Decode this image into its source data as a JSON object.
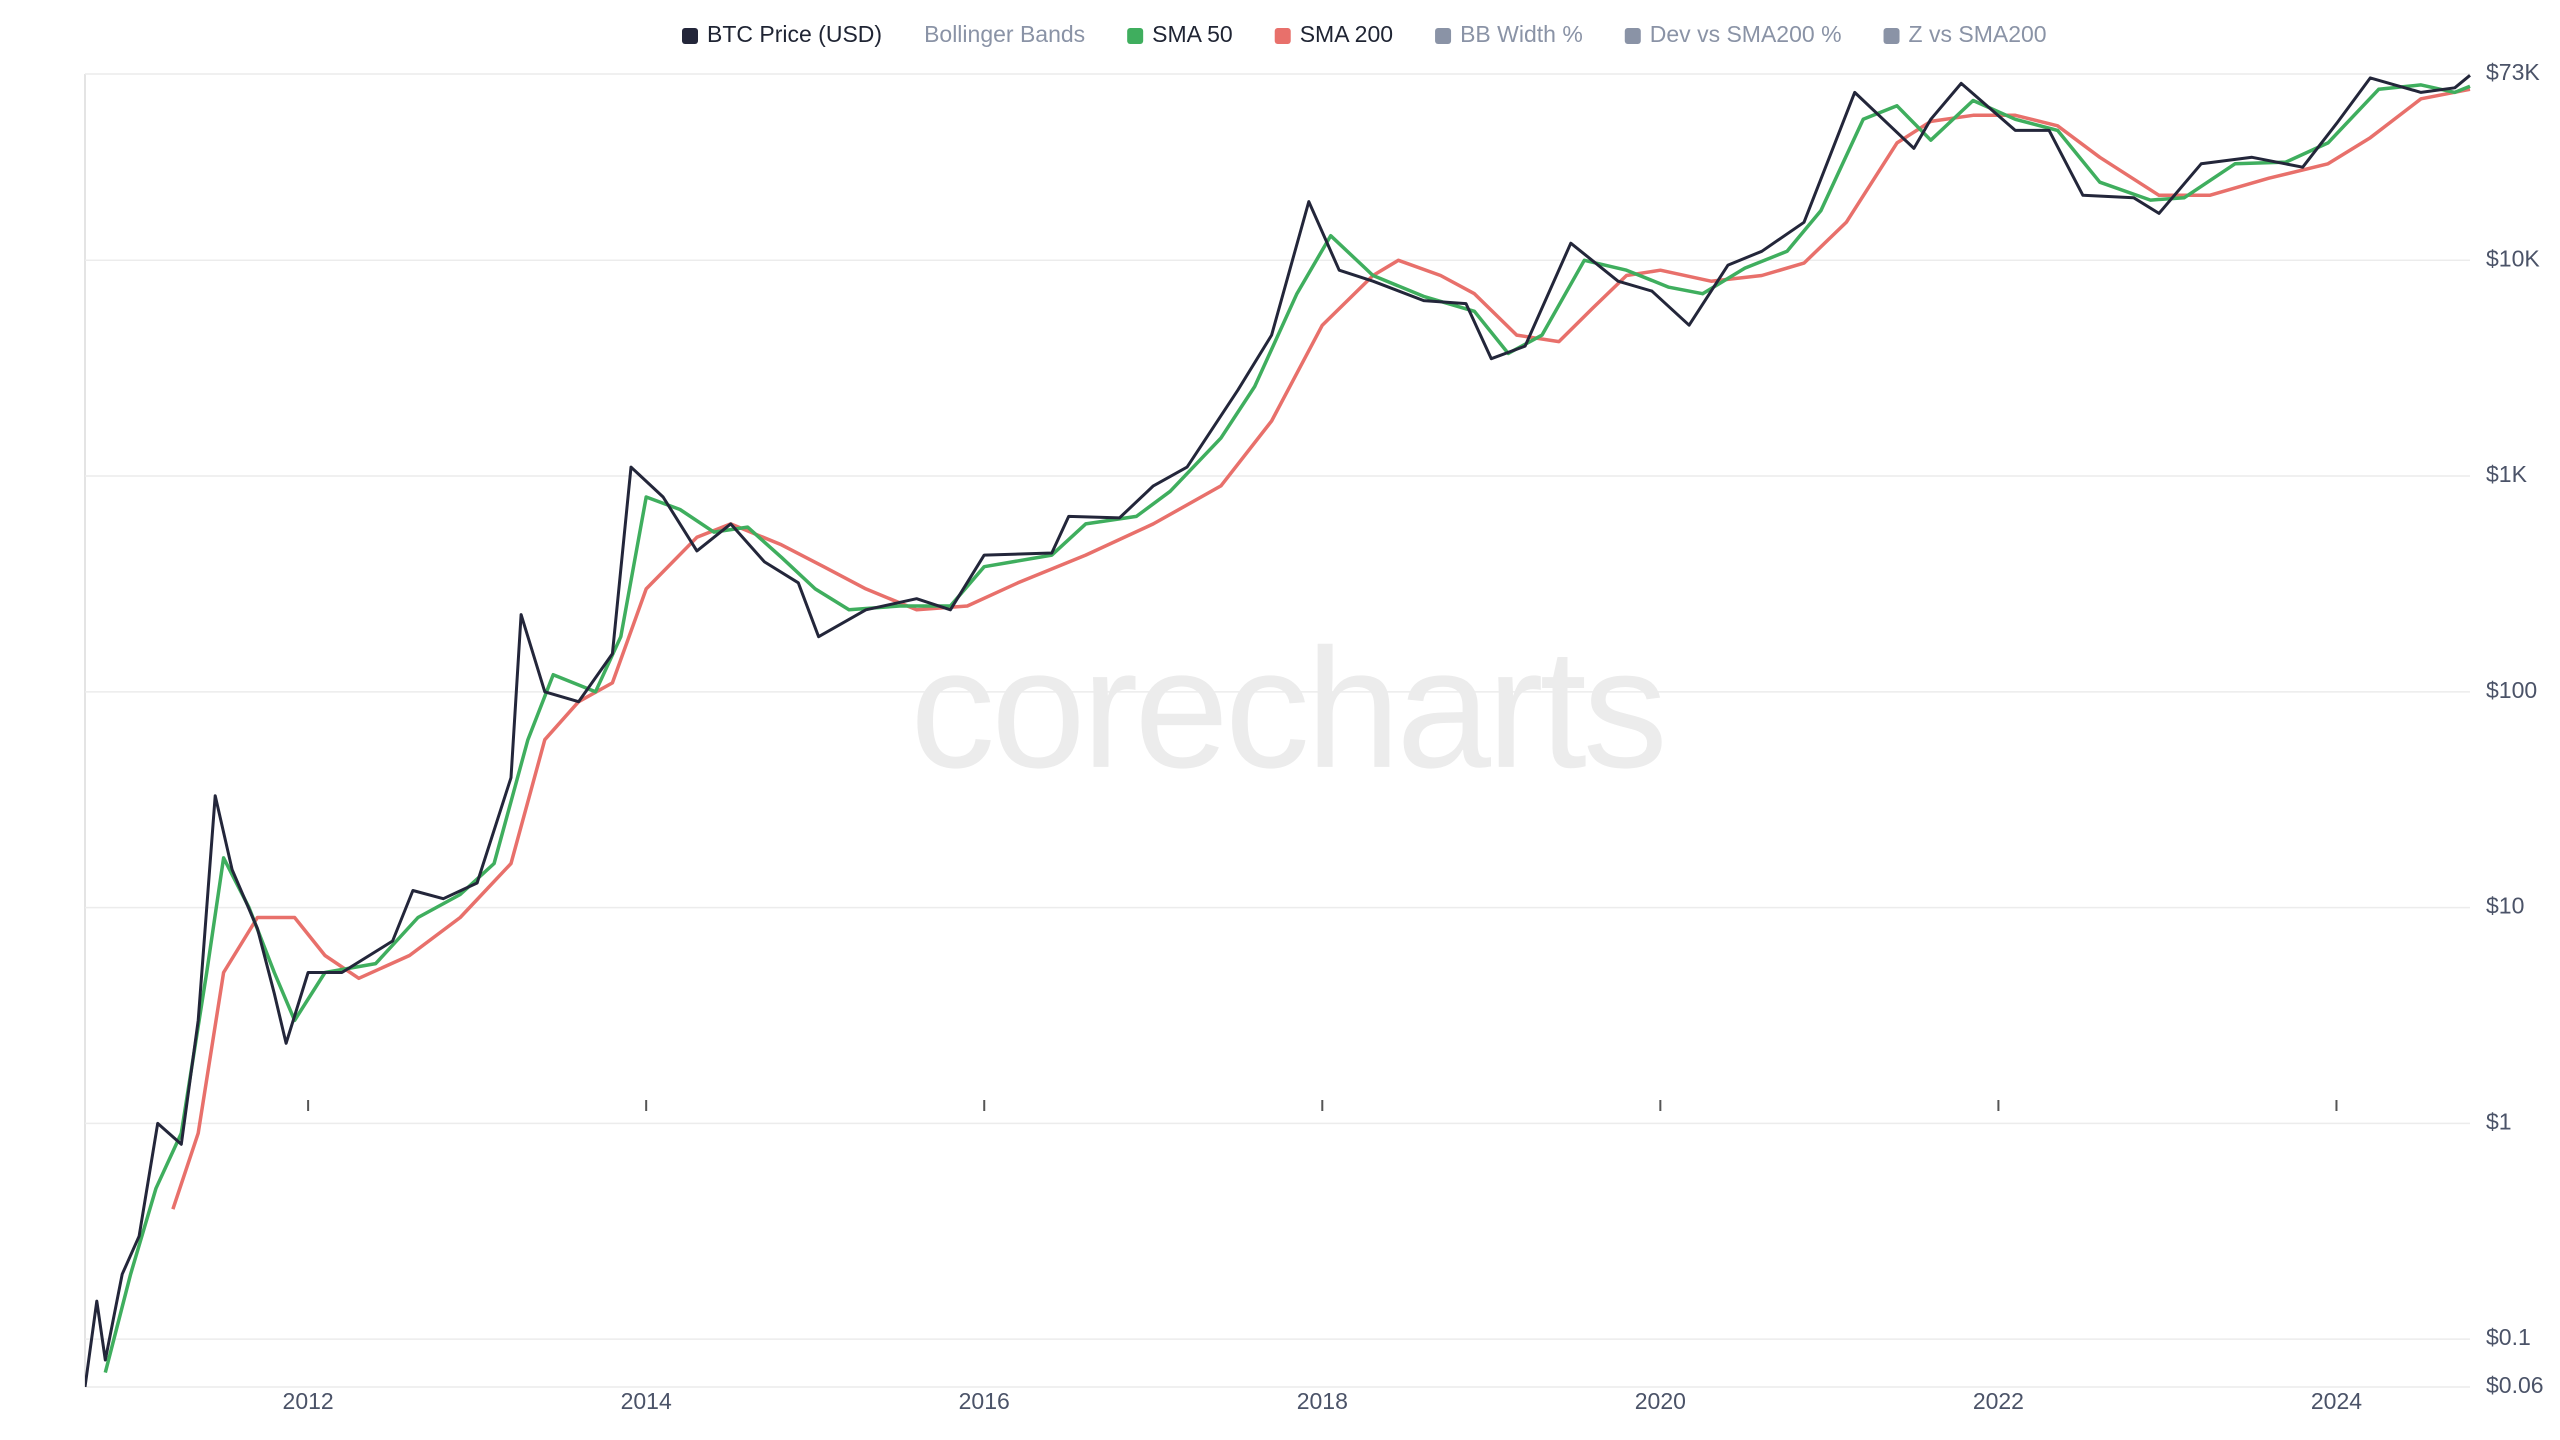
{
  "chart_data": {
    "type": "line",
    "log_scale": true,
    "grid": true,
    "legend_position": "top",
    "watermark": "corecharts",
    "xlim": [
      2010.68,
      2024.79
    ],
    "xticks": [
      2012,
      2014,
      2016,
      2018,
      2020,
      2022,
      2024
    ],
    "ylim": [
      0.06,
      73000
    ],
    "yticks": [
      {
        "value": 0.06,
        "label": "$0.06"
      },
      {
        "value": 0.1,
        "label": "$0.1"
      },
      {
        "value": 1,
        "label": "$1"
      },
      {
        "value": 10,
        "label": "$10"
      },
      {
        "value": 100,
        "label": "$100"
      },
      {
        "value": 1000,
        "label": "$1K"
      },
      {
        "value": 10000,
        "label": "$10K"
      },
      {
        "value": 73000,
        "label": "$73K"
      }
    ],
    "series": [
      {
        "name": "BTC Price (USD)",
        "color": "#23263a",
        "x": [
          2010.68,
          2010.75,
          2010.8,
          2010.9,
          2011.0,
          2011.11,
          2011.25,
          2011.35,
          2011.45,
          2011.55,
          2011.7,
          2011.8,
          2011.87,
          2012.0,
          2012.2,
          2012.5,
          2012.62,
          2012.8,
          2013.0,
          2013.2,
          2013.26,
          2013.4,
          2013.6,
          2013.8,
          2013.91,
          2014.1,
          2014.3,
          2014.5,
          2014.7,
          2014.9,
          2015.02,
          2015.3,
          2015.6,
          2015.8,
          2016.0,
          2016.4,
          2016.5,
          2016.8,
          2017.0,
          2017.2,
          2017.5,
          2017.7,
          2017.92,
          2018.1,
          2018.3,
          2018.6,
          2018.85,
          2019.0,
          2019.2,
          2019.47,
          2019.75,
          2019.95,
          2020.17,
          2020.4,
          2020.6,
          2020.85,
          2021.0,
          2021.15,
          2021.5,
          2021.6,
          2021.78,
          2022.1,
          2022.3,
          2022.5,
          2022.8,
          2022.95,
          2023.2,
          2023.5,
          2023.8,
          2024.0,
          2024.2,
          2024.5,
          2024.7,
          2024.79
        ],
        "values": [
          0.06,
          0.15,
          0.08,
          0.2,
          0.3,
          1,
          0.8,
          3,
          33,
          15,
          8,
          4,
          2.35,
          5,
          5,
          7,
          12,
          11,
          13,
          40,
          228,
          100,
          90,
          150,
          1100,
          800,
          450,
          600,
          400,
          320,
          180,
          240,
          270,
          240,
          430,
          440,
          650,
          640,
          900,
          1100,
          2500,
          4500,
          18700,
          9000,
          8000,
          6500,
          6300,
          3500,
          4000,
          12000,
          8000,
          7200,
          5000,
          9500,
          11000,
          15000,
          30000,
          60000,
          33000,
          45000,
          66000,
          40000,
          40000,
          20000,
          19500,
          16500,
          28000,
          30000,
          27000,
          43000,
          70000,
          60000,
          63000,
          72000
        ]
      },
      {
        "name": "SMA 50",
        "color": "#3fae5e",
        "x": [
          2010.8,
          2010.95,
          2011.1,
          2011.25,
          2011.4,
          2011.5,
          2011.65,
          2011.8,
          2011.92,
          2012.1,
          2012.4,
          2012.65,
          2012.9,
          2013.1,
          2013.3,
          2013.45,
          2013.7,
          2013.85,
          2014.0,
          2014.2,
          2014.4,
          2014.6,
          2014.8,
          2015.0,
          2015.2,
          2015.5,
          2015.8,
          2016.0,
          2016.4,
          2016.6,
          2016.9,
          2017.1,
          2017.4,
          2017.6,
          2017.85,
          2018.05,
          2018.3,
          2018.6,
          2018.9,
          2019.1,
          2019.3,
          2019.55,
          2019.8,
          2020.05,
          2020.25,
          2020.5,
          2020.75,
          2020.95,
          2021.2,
          2021.4,
          2021.6,
          2021.85,
          2022.1,
          2022.35,
          2022.6,
          2022.9,
          2023.1,
          2023.4,
          2023.7,
          2023.95,
          2024.25,
          2024.5,
          2024.7,
          2024.79
        ],
        "values": [
          0.07,
          0.2,
          0.5,
          0.9,
          5,
          17,
          10,
          5,
          3,
          5,
          5.5,
          9,
          11.5,
          16,
          60,
          120,
          100,
          180,
          800,
          700,
          550,
          580,
          420,
          300,
          240,
          250,
          250,
          380,
          430,
          600,
          650,
          850,
          1500,
          2600,
          7000,
          13000,
          8500,
          6800,
          5800,
          3700,
          4500,
          10000,
          9000,
          7500,
          7000,
          9200,
          11000,
          17000,
          45000,
          52000,
          36000,
          55000,
          45000,
          40000,
          23000,
          19000,
          19500,
          28000,
          28500,
          35000,
          62000,
          65000,
          60000,
          64000
        ]
      },
      {
        "name": "SMA 200",
        "color": "#e8706b",
        "x": [
          2011.2,
          2011.35,
          2011.5,
          2011.7,
          2011.92,
          2012.1,
          2012.3,
          2012.6,
          2012.9,
          2013.2,
          2013.4,
          2013.6,
          2013.8,
          2014.0,
          2014.3,
          2014.5,
          2014.8,
          2015.05,
          2015.3,
          2015.6,
          2015.9,
          2016.2,
          2016.6,
          2017.0,
          2017.4,
          2017.7,
          2018.0,
          2018.3,
          2018.45,
          2018.7,
          2018.9,
          2019.15,
          2019.4,
          2019.6,
          2019.8,
          2020.0,
          2020.3,
          2020.6,
          2020.85,
          2021.1,
          2021.4,
          2021.6,
          2021.85,
          2022.1,
          2022.35,
          2022.6,
          2022.95,
          2023.25,
          2023.6,
          2023.95,
          2024.2,
          2024.5,
          2024.79
        ],
        "values": [
          0.4,
          0.9,
          5,
          9,
          9,
          6,
          4.7,
          6,
          9,
          16,
          60,
          90,
          110,
          300,
          520,
          600,
          480,
          380,
          300,
          240,
          250,
          320,
          430,
          600,
          900,
          1800,
          5000,
          8500,
          10000,
          8500,
          7000,
          4500,
          4200,
          6000,
          8500,
          9000,
          8000,
          8500,
          9700,
          15000,
          35000,
          44000,
          47000,
          47000,
          42000,
          30000,
          20000,
          20000,
          24000,
          28000,
          37000,
          56000,
          62000
        ]
      }
    ],
    "inactive_series": [
      {
        "name": "Bollinger Bands"
      },
      {
        "name": "BB Width %",
        "color": "#8a93a6"
      },
      {
        "name": "Dev vs SMA200 %",
        "color": "#8a93a6"
      },
      {
        "name": "Z vs SMA200",
        "color": "#8a93a6"
      }
    ]
  }
}
